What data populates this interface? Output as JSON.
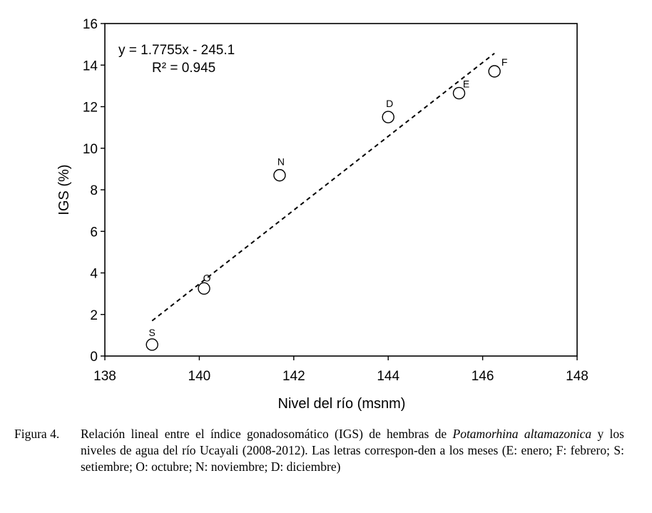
{
  "chart_data": {
    "type": "scatter",
    "xlabel": "Nivel del río (msnm)",
    "ylabel": "IGS (%)",
    "xlim": [
      138,
      148
    ],
    "ylim": [
      0,
      16
    ],
    "x_ticks": [
      "138",
      "140",
      "142",
      "144",
      "146",
      "148"
    ],
    "y_ticks": [
      "0",
      "2",
      "4",
      "6",
      "8",
      "10",
      "12",
      "14",
      "16"
    ],
    "points": [
      {
        "label": "S",
        "x": 139.0,
        "y": 0.55
      },
      {
        "label": "O",
        "x": 140.1,
        "y": 3.25
      },
      {
        "label": "N",
        "x": 141.7,
        "y": 8.7
      },
      {
        "label": "D",
        "x": 144.0,
        "y": 11.5
      },
      {
        "label": "E",
        "x": 145.5,
        "y": 12.65
      },
      {
        "label": "F",
        "x": 146.25,
        "y": 13.7
      }
    ],
    "trendline": {
      "style": "dashed",
      "slope": 1.7755,
      "intercept": -245.1,
      "x_start": 139.0,
      "x_end": 146.25,
      "equation": "y = 1.7755x - 245.1",
      "r2": "R² = 0.945"
    },
    "grid": false,
    "marker": "open-circle"
  },
  "caption": {
    "number": "Figura 4.",
    "text_before": "Relación lineal entre el índice gonadosomático (IGS) de hembras de ",
    "species": "Potamorhina altamazonica",
    "text_after": " y los niveles de agua del río Ucayali (2008-2012). Las letras correspon-den a los meses (E: enero; F: febrero; S: setiembre; O: octubre; N: noviembre; D: diciembre)"
  }
}
